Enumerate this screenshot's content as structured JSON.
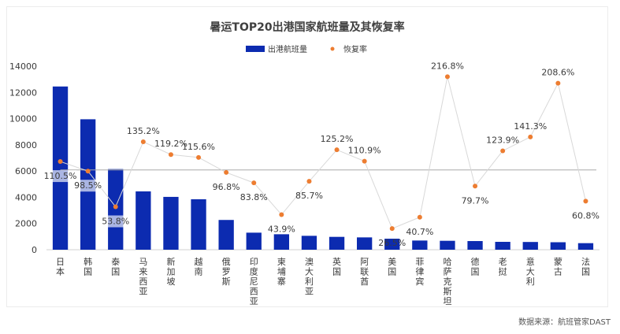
{
  "chart_data": {
    "type": "bar",
    "title": "暑运TOP20出港国家航班量及其恢复率",
    "categories": [
      "日本",
      "韩国",
      "泰国",
      "马来西亚",
      "新加坡",
      "越南",
      "俄罗斯",
      "印度尼西亚",
      "柬埔寨",
      "澳大利亚",
      "英国",
      "阿联酋",
      "美国",
      "菲律宾",
      "哈萨克斯坦",
      "德国",
      "老挝",
      "意大利",
      "蒙古",
      "法国"
    ],
    "series": [
      {
        "name": "出港航班量",
        "type": "bar",
        "values": [
          12450,
          9950,
          6150,
          4450,
          4030,
          3850,
          2270,
          1300,
          1180,
          1060,
          980,
          940,
          840,
          700,
          680,
          660,
          600,
          590,
          570,
          500
        ]
      },
      {
        "name": "恢复率",
        "type": "line",
        "values": [
          110.5,
          98.5,
          53.8,
          135.2,
          119.2,
          115.6,
          96.8,
          83.8,
          43.9,
          85.7,
          125.2,
          110.9,
          26.5,
          40.7,
          216.8,
          79.7,
          123.9,
          141.3,
          208.6,
          60.8
        ],
        "labels": [
          "110.5%",
          "98.5%",
          "53.8%",
          "135.2%",
          "119.2%",
          "115.6%",
          "96.8%",
          "83.8%",
          "43.9%",
          "85.7%",
          "125.2%",
          "110.9%",
          "26.5%",
          "40.7%",
          "216.8%",
          "79.7%",
          "123.9%",
          "141.3%",
          "208.6%",
          "60.8%"
        ]
      }
    ],
    "ylim": [
      0,
      14000
    ],
    "yticks": [
      0,
      2000,
      4000,
      6000,
      8000,
      10000,
      12000,
      14000
    ],
    "reference_line": 100,
    "legend": {
      "position": "top-center"
    },
    "colors": {
      "bar": "#0c2bb0",
      "dot": "#ed7d31",
      "line": "#d8d8d8",
      "ref": "#aaaaaa",
      "text": "#3a3a3a"
    }
  },
  "source": "数据来源：航班管家DAST"
}
